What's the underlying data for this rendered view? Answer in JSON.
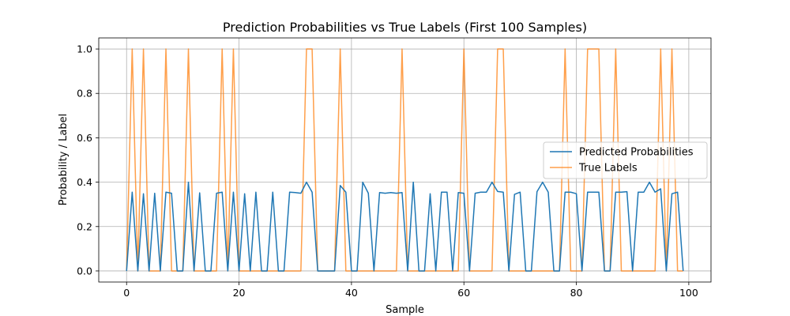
{
  "chart_data": {
    "type": "line",
    "title": "Prediction Probabilities vs True Labels (First 100 Samples)",
    "xlabel": "Sample",
    "ylabel": "Probability / Label",
    "xlim": [
      -4.95,
      103.95
    ],
    "ylim": [
      -0.05,
      1.05
    ],
    "xticks": [
      0,
      20,
      40,
      60,
      80,
      100
    ],
    "yticks": [
      0.0,
      0.2,
      0.4,
      0.6,
      0.8,
      1.0
    ],
    "xtick_labels": [
      "0",
      "20",
      "40",
      "60",
      "80",
      "100"
    ],
    "ytick_labels": [
      "0.0",
      "0.2",
      "0.4",
      "0.6",
      "0.8",
      "1.0"
    ],
    "grid": true,
    "legend_position": "center-right",
    "x": [
      0,
      1,
      2,
      3,
      4,
      5,
      6,
      7,
      8,
      9,
      10,
      11,
      12,
      13,
      14,
      15,
      16,
      17,
      18,
      19,
      20,
      21,
      22,
      23,
      24,
      25,
      26,
      27,
      28,
      29,
      30,
      31,
      32,
      33,
      34,
      35,
      36,
      37,
      38,
      39,
      40,
      41,
      42,
      43,
      44,
      45,
      46,
      47,
      48,
      49,
      50,
      51,
      52,
      53,
      54,
      55,
      56,
      57,
      58,
      59,
      60,
      61,
      62,
      63,
      64,
      65,
      66,
      67,
      68,
      69,
      70,
      71,
      72,
      73,
      74,
      75,
      76,
      77,
      78,
      79,
      80,
      81,
      82,
      83,
      84,
      85,
      86,
      87,
      88,
      89,
      90,
      91,
      92,
      93,
      94,
      95,
      96,
      97,
      98,
      99
    ],
    "series": [
      {
        "name": "Predicted Probabilities",
        "color": "#1f77b4",
        "values": [
          0.0,
          0.355,
          0.0,
          0.348,
          0.0,
          0.35,
          0.0,
          0.355,
          0.35,
          0.0,
          0.0,
          0.4,
          0.0,
          0.352,
          0.0,
          0.0,
          0.35,
          0.355,
          0.0,
          0.355,
          0.0,
          0.348,
          0.0,
          0.355,
          0.0,
          0.0,
          0.355,
          0.0,
          0.0,
          0.355,
          0.353,
          0.35,
          0.4,
          0.355,
          0.0,
          0.0,
          0.0,
          0.0,
          0.385,
          0.355,
          0.0,
          0.0,
          0.4,
          0.35,
          0.0,
          0.353,
          0.35,
          0.353,
          0.35,
          0.353,
          0.0,
          0.4,
          0.0,
          0.0,
          0.348,
          0.0,
          0.355,
          0.355,
          0.0,
          0.353,
          0.35,
          0.0,
          0.35,
          0.355,
          0.355,
          0.4,
          0.358,
          0.355,
          0.0,
          0.345,
          0.355,
          0.0,
          0.0,
          0.357,
          0.4,
          0.355,
          0.0,
          0.0,
          0.355,
          0.355,
          0.348,
          0.0,
          0.355,
          0.355,
          0.355,
          0.0,
          0.0,
          0.355,
          0.355,
          0.357,
          0.0,
          0.355,
          0.355,
          0.4,
          0.355,
          0.37,
          0.0,
          0.348,
          0.355,
          0.0
        ]
      },
      {
        "name": "True Labels",
        "color": "#ff7f0e",
        "values": [
          0,
          1,
          0,
          1,
          0,
          0,
          0,
          1,
          0,
          0,
          0,
          1,
          0,
          0,
          0,
          0,
          0,
          1,
          0,
          1,
          0,
          0,
          0,
          0,
          0,
          0,
          0,
          0,
          0,
          0,
          0,
          0,
          1,
          1,
          0,
          0,
          0,
          0,
          1,
          0,
          0,
          0,
          0,
          0,
          0,
          0,
          0,
          0,
          0,
          1,
          0,
          0,
          0,
          0,
          0,
          0,
          0,
          0,
          0,
          0,
          1,
          0,
          0,
          0,
          0,
          0,
          1,
          1,
          0,
          0,
          0,
          0,
          0,
          0,
          0,
          0,
          0,
          0,
          1,
          0,
          0,
          0,
          1,
          1,
          1,
          0,
          0,
          1,
          0,
          0,
          0,
          0,
          0,
          0,
          0,
          1,
          0,
          1,
          0,
          0
        ]
      }
    ]
  }
}
